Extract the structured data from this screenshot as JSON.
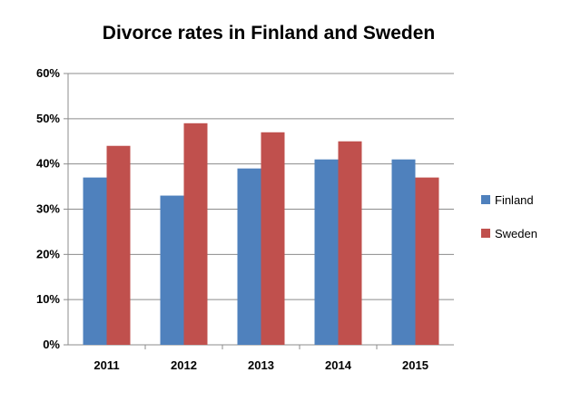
{
  "chart_data": {
    "type": "bar",
    "title": "Divorce rates in Finland and Sweden",
    "categories": [
      "2011",
      "2012",
      "2013",
      "2014",
      "2015"
    ],
    "series": [
      {
        "name": "Finland",
        "values": [
          37,
          33,
          39,
          41,
          41
        ],
        "color": "#4f81bd"
      },
      {
        "name": "Sweden",
        "values": [
          44,
          49,
          47,
          45,
          37
        ],
        "color": "#c0504d"
      }
    ],
    "ylim": [
      0,
      60
    ],
    "yticks": [
      "0%",
      "10%",
      "20%",
      "30%",
      "40%",
      "50%",
      "60%"
    ],
    "grid": true,
    "legend_position": "right",
    "xlabel": "",
    "ylabel": ""
  }
}
